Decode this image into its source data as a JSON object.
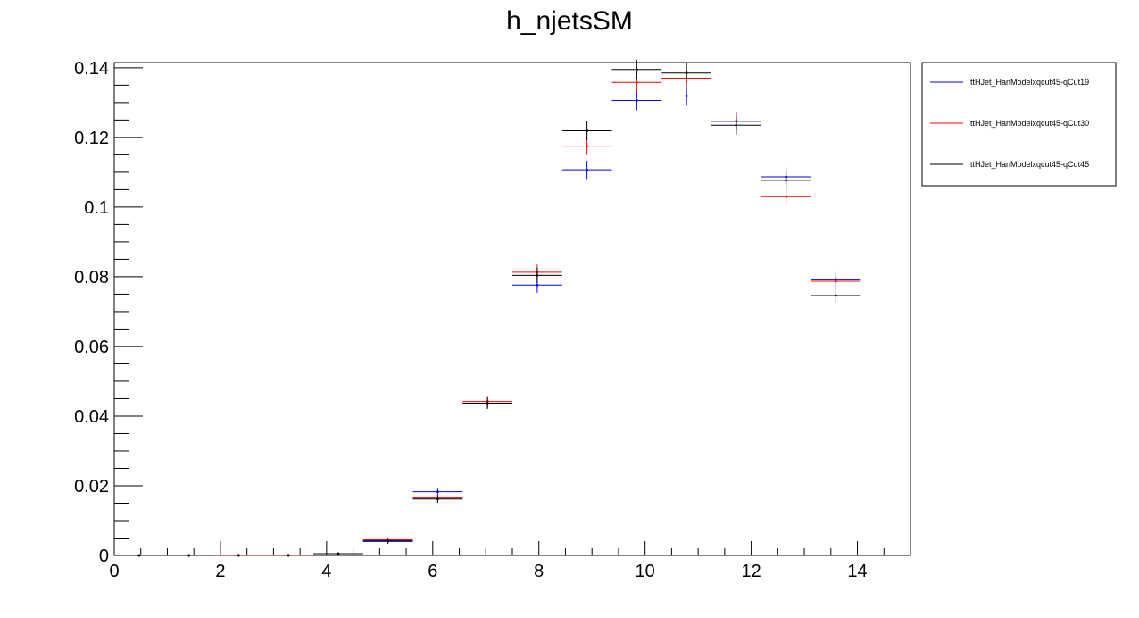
{
  "chart_data": {
    "type": "scatter",
    "title": "h_njetsSM",
    "xlabel": "",
    "ylabel": "",
    "xlim": [
      0,
      15
    ],
    "ylim": [
      0,
      0.1415
    ],
    "x_ticks": [
      0,
      2,
      4,
      6,
      8,
      10,
      12,
      14
    ],
    "x_tick_labels": [
      "0",
      "2",
      "4",
      "6",
      "8",
      "10",
      "12",
      "14"
    ],
    "y_ticks": [
      0,
      0.02,
      0.04,
      0.06,
      0.08,
      0.1,
      0.12,
      0.14
    ],
    "y_tick_labels": [
      "0",
      "0.02",
      "0.04",
      "0.06",
      "0.08",
      "0.1",
      "0.12",
      "0.14"
    ],
    "grid": false,
    "legend_position": "top-right, outside plot",
    "bin_edges": [
      0,
      0.9375,
      1.875,
      2.8125,
      3.75,
      4.6875,
      5.625,
      6.5625,
      7.5,
      8.4375,
      9.375,
      10.3125,
      11.25,
      12.1875,
      13.125,
      14.0625
    ],
    "series": [
      {
        "name": "ttHJet_HanModelxqcut45-qCut19",
        "color": "#0000ff",
        "values": [
          0,
          0,
          0,
          0,
          0.0005,
          0.004,
          0.0183,
          0.0437,
          0.0776,
          0.1107,
          0.1306,
          0.1319,
          0.1246,
          0.1087,
          0.0793
        ],
        "errors": [
          0,
          0,
          0,
          0,
          0.0002,
          0.0007,
          0.0011,
          0.0016,
          0.0022,
          0.0026,
          0.0028,
          0.0028,
          0.0027,
          0.0026,
          0.0022
        ]
      },
      {
        "name": "ttHJet_HanModelxqcut45-qCut30",
        "color": "#ff0000",
        "values": [
          0,
          0,
          0,
          0,
          0.0005,
          0.0045,
          0.0165,
          0.0442,
          0.0813,
          0.1175,
          0.1358,
          0.137,
          0.1247,
          0.103,
          0.0787
        ],
        "errors": [
          0,
          0,
          0,
          0,
          0.0002,
          0.0007,
          0.0011,
          0.0016,
          0.0022,
          0.0026,
          0.0028,
          0.0028,
          0.0027,
          0.0025,
          0.0022
        ]
      },
      {
        "name": "ttHJet_HanModelxqcut45-qCut45",
        "color": "#000000",
        "values": [
          0,
          0,
          5e-05,
          5e-05,
          0.0005,
          0.0042,
          0.0162,
          0.0437,
          0.0804,
          0.1219,
          0.1395,
          0.1385,
          0.1235,
          0.1077,
          0.0746
        ],
        "errors": [
          0,
          0,
          0,
          0,
          0.0002,
          0.0007,
          0.0011,
          0.0016,
          0.0022,
          0.0027,
          0.0028,
          0.0028,
          0.0027,
          0.0025,
          0.0021
        ]
      }
    ]
  }
}
